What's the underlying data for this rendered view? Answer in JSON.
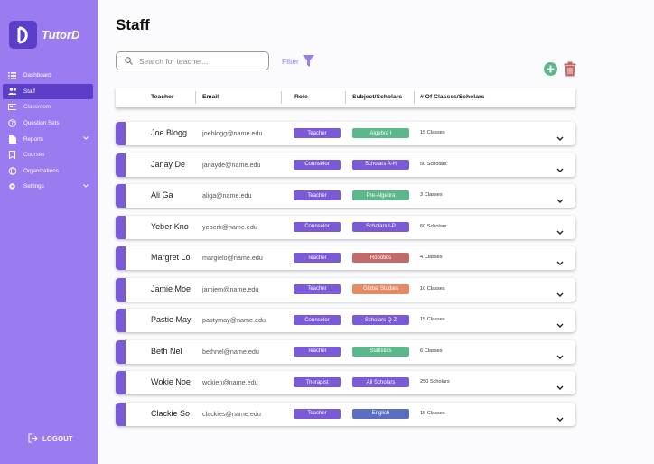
{
  "app": {
    "name": "TutorD"
  },
  "sidebar": {
    "items": [
      {
        "label": "Dashboard",
        "icon": "list-icon"
      },
      {
        "label": "Staff",
        "icon": "people-icon"
      },
      {
        "label": "Classroom",
        "icon": "classroom-icon"
      },
      {
        "label": "Question Sets",
        "icon": "question-icon"
      },
      {
        "label": "Reports",
        "icon": "report-icon"
      },
      {
        "label": "Courses",
        "icon": "bookmark-icon"
      },
      {
        "label": "Organizations",
        "icon": "globe-icon"
      },
      {
        "label": "Settings",
        "icon": "gear-icon"
      }
    ],
    "logout": "LOGOUT"
  },
  "page": {
    "title": "Staff"
  },
  "search": {
    "placeholder": "Search for teacher..."
  },
  "filter": {
    "label": "Filter"
  },
  "table": {
    "headers": {
      "teacher": "Teacher",
      "email": "Email",
      "role": "Role",
      "subject": "Subject/Scholars",
      "classes": "# Of Classes/Scholars"
    },
    "rows": [
      {
        "name": "Joe Blogg",
        "email": "joeblogg@name.edu",
        "role": "Teacher",
        "subject": "Algebra I",
        "subject_color": "#5cb88a",
        "classes": "15 Classes"
      },
      {
        "name": "Janay De",
        "email": "janayde@name.edu",
        "role": "Counselor",
        "subject": "Scholars A-H",
        "subject_color": "#7b5ad8",
        "classes": "50 Scholars"
      },
      {
        "name": "Ali Ga",
        "email": "aliga@name.edu",
        "role": "Teacher",
        "subject": "Pre-Algebra",
        "subject_color": "#5cb88a",
        "classes": "3 Classes"
      },
      {
        "name": "Yeber Kno",
        "email": "yeberk@name.edu",
        "role": "Counselor",
        "subject": "Scholars I-P",
        "subject_color": "#7b5ad8",
        "classes": "60 Scholars"
      },
      {
        "name": "Margret Lo",
        "email": "margielo@name.edu",
        "role": "Teacher",
        "subject": "Robotics",
        "subject_color": "#c26a6a",
        "classes": "4 Classes"
      },
      {
        "name": "Jamie Moe",
        "email": "jamiem@name.edu",
        "role": "Teacher",
        "subject": "Global Studies",
        "subject_color": "#e78a63",
        "classes": "10 Classes"
      },
      {
        "name": "Pastie May",
        "email": "pastymay@name.edu",
        "role": "Counselor",
        "subject": "Scholars Q-Z",
        "subject_color": "#7b5ad8",
        "classes": "15 Classes"
      },
      {
        "name": "Beth Nel",
        "email": "bethnel@name.edu",
        "role": "Teacher",
        "subject": "Statistics",
        "subject_color": "#5cb88a",
        "classes": "6 Classes"
      },
      {
        "name": "Wokie Noe",
        "email": "wokien@name.edu",
        "role": "Therapist",
        "subject": "All Scholars",
        "subject_color": "#7b5ad8",
        "classes": "250 Scholars"
      },
      {
        "name": "Clackie So",
        "email": "clackies@name.edu",
        "role": "Teacher",
        "subject": "English",
        "subject_color": "#5a6fc2",
        "classes": "15 Classes"
      }
    ]
  },
  "colors": {
    "sidebar": "#9b7cf0",
    "accent": "#5b3fc9",
    "stripe": "#7b5ad8",
    "add": "#5cb88a",
    "delete": "#c26a6a"
  }
}
